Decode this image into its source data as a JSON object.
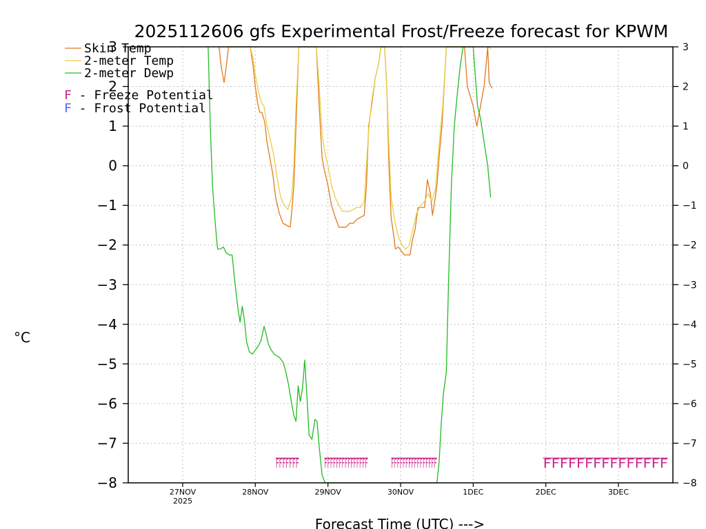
{
  "chart_data": {
    "type": "line",
    "title": "2025112606 gfs Experimental Frost/Freeze forecast for KPWM",
    "xlabel": "Forecast Time (UTC) --->",
    "ylabel": "°C",
    "ylim": [
      -8,
      3
    ],
    "xlim": [
      -0.75,
      6.75
    ],
    "y_ticks": [
      3,
      2,
      1,
      0,
      -1,
      -2,
      -3,
      -4,
      -5,
      -6,
      -7,
      -8
    ],
    "x_ticks": [
      {
        "x": 0,
        "label": "27NOV",
        "sub": "2025"
      },
      {
        "x": 1,
        "label": "28NOV",
        "sub": ""
      },
      {
        "x": 2,
        "label": "29NOV",
        "sub": ""
      },
      {
        "x": 3,
        "label": "30NOV",
        "sub": ""
      },
      {
        "x": 4,
        "label": "1DEC",
        "sub": ""
      },
      {
        "x": 5,
        "label": "2DEC",
        "sub": ""
      },
      {
        "x": 6,
        "label": "3DEC",
        "sub": ""
      }
    ],
    "grid": true,
    "legend_placement": "top-left",
    "series": [
      {
        "name": "Skin Temp",
        "color": "#e07820",
        "points": [
          [
            0.5,
            3.0
          ],
          [
            0.53,
            2.5
          ],
          [
            0.57,
            2.1
          ],
          [
            0.6,
            2.5
          ],
          [
            0.63,
            3.0
          ],
          [
            0.93,
            3.0
          ],
          [
            0.97,
            2.5
          ],
          [
            1.0,
            2.0
          ],
          [
            1.03,
            1.6
          ],
          [
            1.06,
            1.35
          ],
          [
            1.09,
            1.35
          ],
          [
            1.13,
            1.1
          ],
          [
            1.16,
            0.6
          ],
          [
            1.2,
            0.2
          ],
          [
            1.24,
            -0.2
          ],
          [
            1.28,
            -0.8
          ],
          [
            1.33,
            -1.2
          ],
          [
            1.38,
            -1.45
          ],
          [
            1.43,
            -1.5
          ],
          [
            1.48,
            -1.55
          ],
          [
            1.5,
            -1.2
          ],
          [
            1.53,
            -0.5
          ],
          [
            1.56,
            1.0
          ],
          [
            1.6,
            3.0
          ],
          [
            1.84,
            3.0
          ],
          [
            1.88,
            1.5
          ],
          [
            1.92,
            0.2
          ],
          [
            1.95,
            -0.1
          ],
          [
            2.0,
            -0.5
          ],
          [
            2.05,
            -1.0
          ],
          [
            2.1,
            -1.3
          ],
          [
            2.15,
            -1.55
          ],
          [
            2.2,
            -1.55
          ],
          [
            2.25,
            -1.55
          ],
          [
            2.3,
            -1.45
          ],
          [
            2.35,
            -1.45
          ],
          [
            2.4,
            -1.35
          ],
          [
            2.45,
            -1.3
          ],
          [
            2.5,
            -1.25
          ],
          [
            2.53,
            -0.5
          ],
          [
            2.56,
            1.0
          ],
          [
            2.6,
            1.5
          ],
          [
            2.65,
            2.2
          ],
          [
            2.7,
            2.6
          ],
          [
            2.73,
            3.0
          ],
          [
            2.78,
            3.0
          ],
          [
            2.81,
            2.0
          ],
          [
            2.84,
            0.0
          ],
          [
            2.87,
            -1.3
          ],
          [
            2.9,
            -1.7
          ],
          [
            2.93,
            -2.1
          ],
          [
            2.97,
            -2.05
          ],
          [
            3.01,
            -2.15
          ],
          [
            3.05,
            -2.25
          ],
          [
            3.1,
            -2.25
          ],
          [
            3.13,
            -2.25
          ],
          [
            3.16,
            -1.9
          ],
          [
            3.2,
            -1.6
          ],
          [
            3.24,
            -1.05
          ],
          [
            3.29,
            -1.05
          ],
          [
            3.33,
            -1.05
          ],
          [
            3.37,
            -0.35
          ],
          [
            3.41,
            -0.7
          ],
          [
            3.44,
            -1.25
          ],
          [
            3.47,
            -0.9
          ],
          [
            3.5,
            -0.5
          ],
          [
            3.53,
            0.2
          ],
          [
            3.57,
            1.0
          ],
          [
            3.6,
            2.0
          ],
          [
            3.63,
            3.0
          ],
          [
            3.88,
            3.0
          ],
          [
            3.92,
            2.0
          ],
          [
            4.0,
            1.5
          ],
          [
            4.05,
            1.0
          ],
          [
            4.1,
            1.5
          ],
          [
            4.15,
            2.0
          ],
          [
            4.2,
            3.0
          ],
          [
            4.22,
            2.1
          ],
          [
            4.26,
            1.95
          ]
        ]
      },
      {
        "name": "2-meter Temp",
        "color": "#e8d040",
        "points": [
          [
            0.5,
            3.0
          ],
          [
            0.63,
            3.0
          ],
          [
            0.93,
            3.0
          ],
          [
            0.97,
            2.7
          ],
          [
            1.0,
            2.3
          ],
          [
            1.04,
            1.9
          ],
          [
            1.08,
            1.6
          ],
          [
            1.12,
            1.5
          ],
          [
            1.16,
            1.0
          ],
          [
            1.2,
            0.7
          ],
          [
            1.25,
            0.3
          ],
          [
            1.3,
            -0.3
          ],
          [
            1.35,
            -0.8
          ],
          [
            1.4,
            -1.0
          ],
          [
            1.45,
            -1.1
          ],
          [
            1.5,
            -0.8
          ],
          [
            1.53,
            0.0
          ],
          [
            1.56,
            1.5
          ],
          [
            1.6,
            3.0
          ],
          [
            1.84,
            3.0
          ],
          [
            1.88,
            2.0
          ],
          [
            1.92,
            0.8
          ],
          [
            1.96,
            0.3
          ],
          [
            2.0,
            0.0
          ],
          [
            2.05,
            -0.5
          ],
          [
            2.1,
            -0.8
          ],
          [
            2.15,
            -1.0
          ],
          [
            2.2,
            -1.15
          ],
          [
            2.25,
            -1.15
          ],
          [
            2.3,
            -1.15
          ],
          [
            2.35,
            -1.1
          ],
          [
            2.4,
            -1.05
          ],
          [
            2.45,
            -1.05
          ],
          [
            2.5,
            -0.9
          ],
          [
            2.53,
            0.0
          ],
          [
            2.56,
            0.9
          ],
          [
            2.6,
            1.6
          ],
          [
            2.65,
            2.2
          ],
          [
            2.7,
            2.6
          ],
          [
            2.73,
            3.0
          ],
          [
            2.78,
            3.0
          ],
          [
            2.81,
            2.0
          ],
          [
            2.84,
            0.5
          ],
          [
            2.87,
            -0.8
          ],
          [
            2.92,
            -1.4
          ],
          [
            2.97,
            -1.8
          ],
          [
            3.02,
            -2.0
          ],
          [
            3.07,
            -2.1
          ],
          [
            3.12,
            -2.0
          ],
          [
            3.17,
            -1.6
          ],
          [
            3.22,
            -1.2
          ],
          [
            3.28,
            -1.0
          ],
          [
            3.33,
            -0.9
          ],
          [
            3.38,
            -0.7
          ],
          [
            3.43,
            -0.9
          ],
          [
            3.48,
            -0.6
          ],
          [
            3.53,
            0.5
          ],
          [
            3.58,
            1.5
          ],
          [
            3.63,
            3.0
          ],
          [
            3.88,
            3.0
          ],
          [
            4.0,
            3.0
          ],
          [
            4.2,
            3.0
          ],
          [
            4.25,
            2.95
          ]
        ]
      },
      {
        "name": "2-meter Dewp",
        "color": "#22bb22",
        "points": [
          [
            0.35,
            3.0
          ],
          [
            0.38,
            1.0
          ],
          [
            0.41,
            -0.5
          ],
          [
            0.45,
            -1.5
          ],
          [
            0.48,
            -2.1
          ],
          [
            0.52,
            -2.1
          ],
          [
            0.56,
            -2.05
          ],
          [
            0.6,
            -2.2
          ],
          [
            0.64,
            -2.25
          ],
          [
            0.68,
            -2.25
          ],
          [
            0.72,
            -2.95
          ],
          [
            0.76,
            -3.6
          ],
          [
            0.79,
            -3.95
          ],
          [
            0.82,
            -3.55
          ],
          [
            0.85,
            -3.9
          ],
          [
            0.88,
            -4.45
          ],
          [
            0.92,
            -4.7
          ],
          [
            0.96,
            -4.75
          ],
          [
            1.0,
            -4.65
          ],
          [
            1.04,
            -4.55
          ],
          [
            1.08,
            -4.4
          ],
          [
            1.12,
            -4.05
          ],
          [
            1.15,
            -4.25
          ],
          [
            1.18,
            -4.5
          ],
          [
            1.22,
            -4.65
          ],
          [
            1.26,
            -4.75
          ],
          [
            1.3,
            -4.8
          ],
          [
            1.34,
            -4.85
          ],
          [
            1.38,
            -4.95
          ],
          [
            1.42,
            -5.2
          ],
          [
            1.46,
            -5.55
          ],
          [
            1.5,
            -6.0
          ],
          [
            1.53,
            -6.3
          ],
          [
            1.56,
            -6.45
          ],
          [
            1.59,
            -5.55
          ],
          [
            1.62,
            -5.95
          ],
          [
            1.65,
            -5.6
          ],
          [
            1.68,
            -4.9
          ],
          [
            1.71,
            -5.8
          ],
          [
            1.74,
            -6.8
          ],
          [
            1.78,
            -6.9
          ],
          [
            1.82,
            -6.4
          ],
          [
            1.85,
            -6.45
          ],
          [
            1.88,
            -7.1
          ],
          [
            1.92,
            -7.8
          ],
          [
            1.96,
            -8.0
          ],
          [
            3.5,
            -8.0
          ],
          [
            3.53,
            -7.5
          ],
          [
            3.56,
            -6.5
          ],
          [
            3.59,
            -5.75
          ],
          [
            3.63,
            -5.2
          ],
          [
            3.66,
            -3.0
          ],
          [
            3.7,
            -0.5
          ],
          [
            3.74,
            1.0
          ],
          [
            3.78,
            1.8
          ],
          [
            3.82,
            2.5
          ],
          [
            3.86,
            3.0
          ],
          [
            4.0,
            3.0
          ],
          [
            4.06,
            1.5
          ],
          [
            4.1,
            1.2
          ],
          [
            4.15,
            0.6
          ],
          [
            4.2,
            0.0
          ],
          [
            4.24,
            -0.8
          ]
        ]
      }
    ],
    "freeze_potential": {
      "label_letter": "F",
      "color": "#cc2288",
      "blocks": [
        {
          "start": 1.28,
          "end": 1.6,
          "text": "FFFFFFF"
        },
        {
          "start": 1.95,
          "end": 2.55,
          "text": "FFFFFFFFFFFFFFF"
        },
        {
          "start": 2.87,
          "end": 3.5,
          "text": "FFFFFFFFFFFFFFFF"
        },
        {
          "start": 4.96,
          "end": 6.68,
          "text": "FFFFFFFFFFFFFFF"
        }
      ]
    },
    "legend": [
      {
        "label": "Skin Temp",
        "color": "#e07820"
      },
      {
        "label": "2-meter Temp",
        "color": "#e8d040"
      },
      {
        "label": "2-meter Dewp",
        "color": "#22bb22"
      }
    ],
    "potential_legend": [
      {
        "letter": "F",
        "text": " - Freeze Potential",
        "color": "#cc2288"
      },
      {
        "letter": "F",
        "text": " - Frost Potential",
        "color": "#5566ee"
      }
    ]
  }
}
